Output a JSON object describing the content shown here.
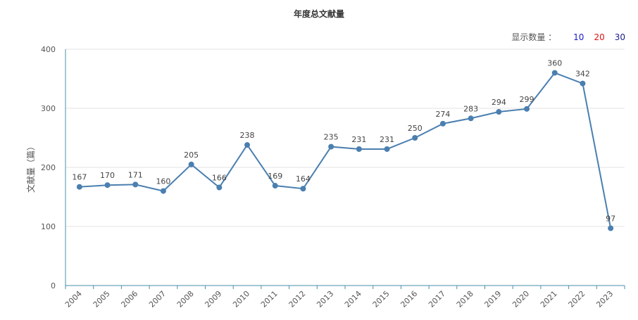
{
  "title": "年度总文献量",
  "display_count": {
    "label": "显示数量 ：",
    "options": [
      {
        "label": "10",
        "color": "#1a1acc"
      },
      {
        "label": "20",
        "color": "#dd1111"
      },
      {
        "label": "30",
        "color": "#1a1a88"
      }
    ]
  },
  "chart_data": {
    "type": "line",
    "title": "年度总文献量",
    "ylabel": "文献量（篇）",
    "xlabel": "",
    "ylim": [
      0,
      400
    ],
    "yticks": [
      0,
      100,
      200,
      300,
      400
    ],
    "grid": true,
    "line_color": "#4a7fb0",
    "categories": [
      "2004",
      "2005",
      "2006",
      "2007",
      "2008",
      "2009",
      "2010",
      "2011",
      "2012",
      "2013",
      "2014",
      "2015",
      "2016",
      "2017",
      "2018",
      "2019",
      "2020",
      "2021",
      "2022",
      "2023"
    ],
    "series": [
      {
        "values": [
          167,
          170,
          171,
          160,
          205,
          166,
          238,
          169,
          164,
          235,
          231,
          231,
          250,
          274,
          283,
          294,
          299,
          360,
          342,
          97
        ]
      }
    ]
  }
}
